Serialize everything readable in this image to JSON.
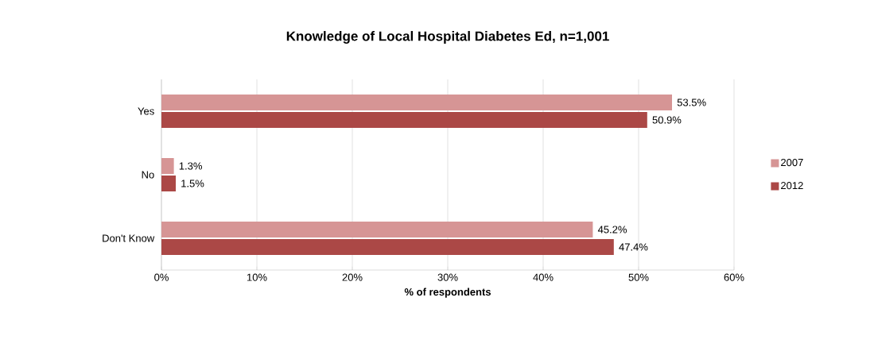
{
  "chart_data": {
    "type": "bar",
    "orientation": "horizontal",
    "title": "Knowledge of Local Hospital Diabetes Ed, n=1,001",
    "xlabel": "% of respondents",
    "categories": [
      "Yes",
      "No",
      "Don't Know"
    ],
    "series": [
      {
        "name": "2007",
        "color": "#d69595",
        "values": [
          53.5,
          1.3,
          45.2
        ],
        "value_labels": [
          "53.5%",
          "1.3%",
          "45.2%"
        ]
      },
      {
        "name": "2012",
        "color": "#ab4846",
        "values": [
          50.9,
          1.5,
          47.4
        ],
        "value_labels": [
          "50.9%",
          "1.5%",
          "47.4%"
        ]
      }
    ],
    "xlim": [
      0,
      60
    ],
    "xticks": [
      {
        "value": 0,
        "label": "0%"
      },
      {
        "value": 10,
        "label": "10%"
      },
      {
        "value": 20,
        "label": "20%"
      },
      {
        "value": 30,
        "label": "30%"
      },
      {
        "value": 40,
        "label": "40%"
      },
      {
        "value": 50,
        "label": "50%"
      },
      {
        "value": 60,
        "label": "60%"
      }
    ],
    "grid": "x",
    "legend": "right"
  }
}
